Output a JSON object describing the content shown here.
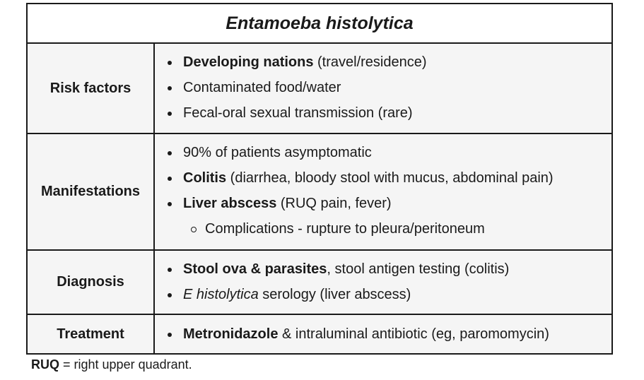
{
  "table": {
    "title": "Entamoeba histolytica",
    "risk_factors": {
      "label": "Risk factors",
      "item1_bold": "Developing nations",
      "item1_rest": " (travel/residence)",
      "item2": "Contaminated food/water",
      "item3": "Fecal-oral sexual transmission (rare)"
    },
    "manifestations": {
      "label": "Manifestations",
      "item1": "90% of patients asymptomatic",
      "item2_bold": "Colitis",
      "item2_rest": " (diarrhea, bloody stool with mucus, abdominal pain)",
      "item3_bold": "Liver abscess",
      "item3_rest": " (RUQ pain, fever)",
      "sub_item": "Complications - rupture to pleura/peritoneum"
    },
    "diagnosis": {
      "label": "Diagnosis",
      "item1_bold": "Stool ova & parasites",
      "item1_rest": ", stool antigen testing (colitis)",
      "item2_italic": "E histolytica",
      "item2_rest": " serology (liver abscess)"
    },
    "treatment": {
      "label": "Treatment",
      "item1_bold": "Metronidazole",
      "item1_rest": " & intraluminal antibiotic (eg, paromomycin)"
    }
  },
  "footnote": {
    "abbr": "RUQ",
    "text": " = right upper quadrant."
  }
}
